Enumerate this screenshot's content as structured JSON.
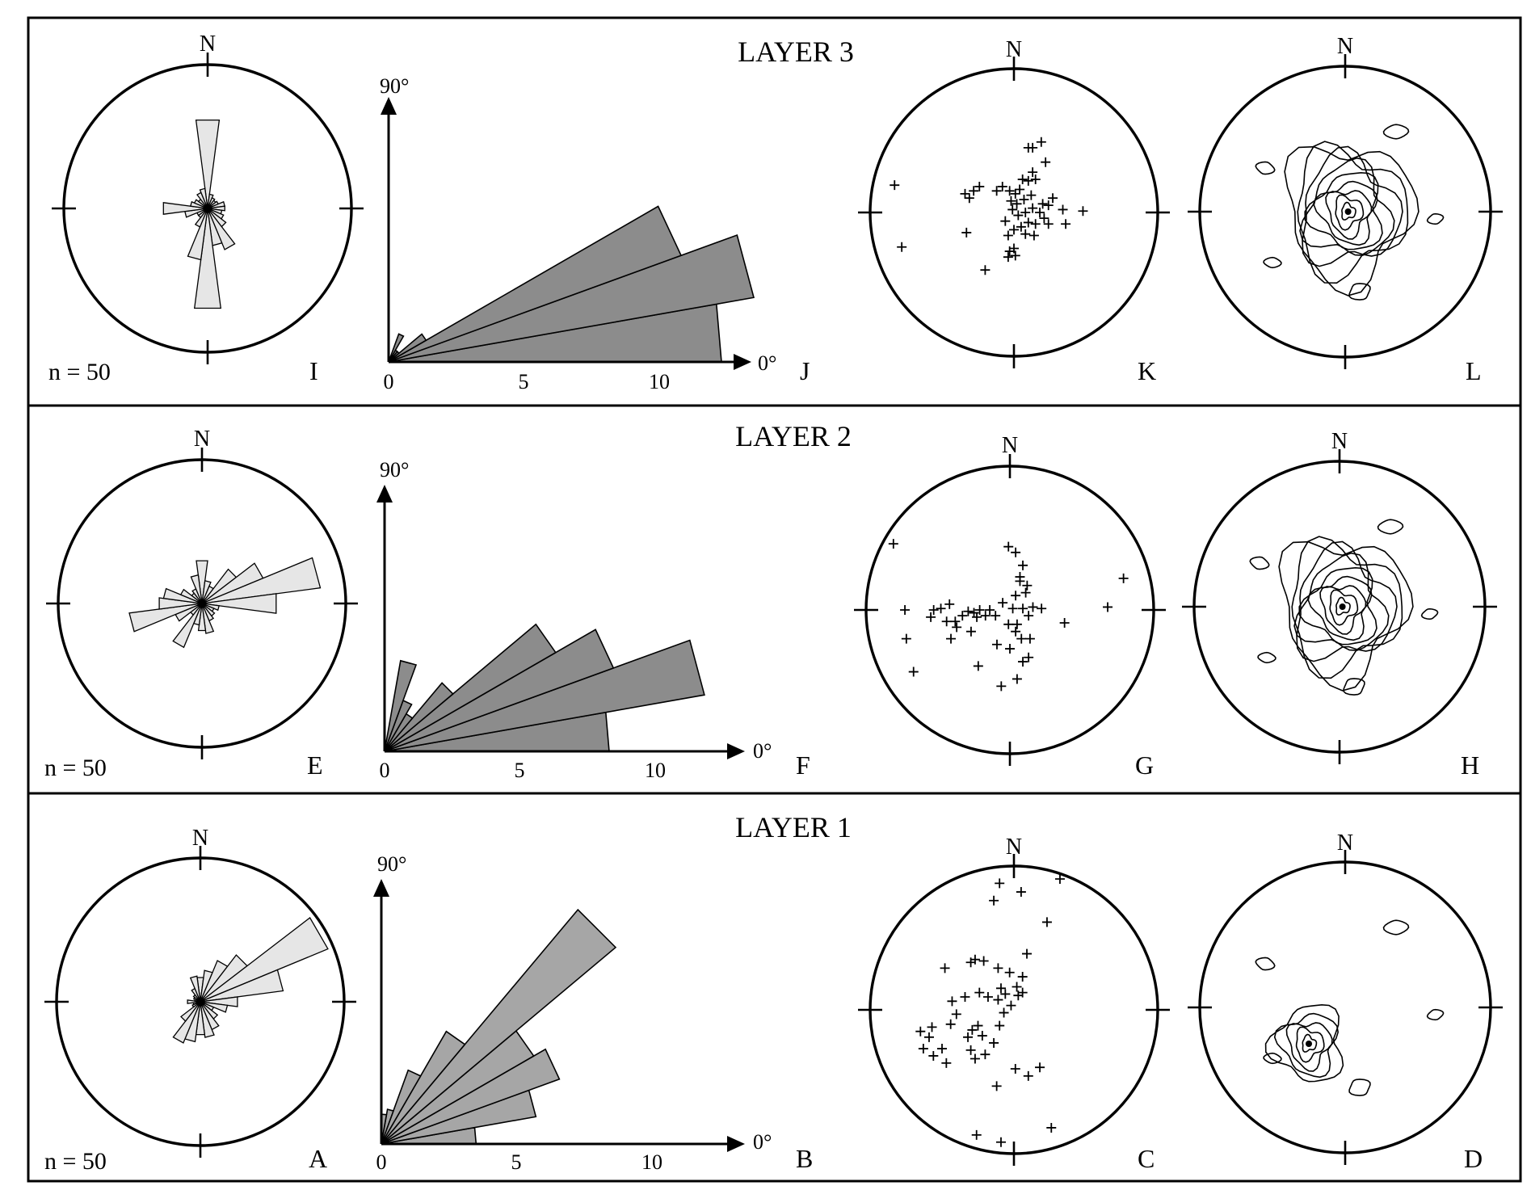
{
  "colors": {
    "rose_fill": "#e6e6e6",
    "layer3_bar_fill": "#8c8c8c",
    "layer2_bar_fill": "#8c8c8c",
    "layer1_bar_fill": "#a6a6a6",
    "line": "#000000"
  },
  "chart_data": [
    {
      "layer_title": "LAYER 3",
      "rose": {
        "type": "rose",
        "letter": "I",
        "north_label": "N",
        "count_text": "n = 50",
        "directions_deg": [
          0,
          15,
          30,
          45,
          60,
          75,
          90,
          105,
          120,
          135,
          150,
          165,
          180,
          195,
          210,
          225,
          240,
          255,
          270,
          285,
          300,
          315,
          330,
          345
        ],
        "values": [
          0.62,
          0.1,
          0.08,
          0.07,
          0.08,
          0.12,
          0.12,
          0.1,
          0.12,
          0.16,
          0.31,
          0.26,
          0.7,
          0.36,
          0.14,
          0.08,
          0.08,
          0.16,
          0.31,
          0.12,
          0.1,
          0.08,
          0.12,
          0.14
        ],
        "max": 1
      },
      "dip": {
        "type": "bar",
        "letter": "J",
        "top_label": "90°",
        "right_label": "0°",
        "x_ticks": [
          "0",
          "5",
          "10"
        ],
        "bin_width_deg": 10,
        "values": [
          12.3,
          13.7,
          11.5,
          1.6,
          0.5,
          0.5,
          1.1,
          0.1,
          0.1
        ],
        "xlim": [
          0,
          13
        ]
      },
      "points": {
        "type": "scatter",
        "letter": "K",
        "north_label": "N",
        "points": [
          [
            0.1,
            0.45
          ],
          [
            0.13,
            0.45
          ],
          [
            0.19,
            0.49
          ],
          [
            0.22,
            0.35
          ],
          [
            0.13,
            0.28
          ],
          [
            0.06,
            0.23
          ],
          [
            0.1,
            0.22
          ],
          [
            0.15,
            0.23
          ],
          [
            -0.28,
            0.15
          ],
          [
            -0.24,
            0.18
          ],
          [
            -0.31,
            0.1
          ],
          [
            -0.34,
            0.13
          ],
          [
            -0.12,
            0.15
          ],
          [
            -0.08,
            0.18
          ],
          [
            -0.03,
            0.15
          ],
          [
            0.01,
            0.13
          ],
          [
            0.04,
            0.16
          ],
          [
            -0.02,
            0.08
          ],
          [
            0.02,
            0.06
          ],
          [
            0.07,
            0.09
          ],
          [
            0.12,
            0.12
          ],
          [
            -0.01,
            0.02
          ],
          [
            0.03,
            -0.02
          ],
          [
            0.08,
            0.0
          ],
          [
            0.13,
            0.03
          ],
          [
            0.18,
            0.0
          ],
          [
            0.2,
            0.06
          ],
          [
            0.24,
            0.05
          ],
          [
            0.27,
            0.1
          ],
          [
            0.21,
            -0.04
          ],
          [
            0.24,
            -0.08
          ],
          [
            0.34,
            0.02
          ],
          [
            0.36,
            -0.08
          ],
          [
            0.48,
            0.01
          ],
          [
            -0.83,
            0.19
          ],
          [
            -0.78,
            -0.24
          ],
          [
            -0.33,
            -0.14
          ],
          [
            -0.06,
            -0.06
          ],
          [
            -0.04,
            -0.16
          ],
          [
            0.0,
            -0.12
          ],
          [
            0.05,
            -0.1
          ],
          [
            0.08,
            -0.15
          ],
          [
            0.1,
            -0.07
          ],
          [
            0.14,
            -0.16
          ],
          [
            0.15,
            -0.08
          ],
          [
            -0.03,
            -0.27
          ],
          [
            0.01,
            -0.3
          ],
          [
            -0.04,
            -0.31
          ],
          [
            0.0,
            -0.25
          ],
          [
            -0.2,
            -0.4
          ]
        ]
      },
      "density": {
        "type": "contour",
        "letter": "L",
        "north_label": "N",
        "max_center": [
          0.02,
          0.0
        ]
      }
    },
    {
      "layer_title": "LAYER 2",
      "rose": {
        "type": "rose",
        "letter": "E",
        "north_label": "N",
        "count_text": "n = 50",
        "directions_deg": [
          0,
          15,
          30,
          45,
          60,
          75,
          90,
          105,
          120,
          135,
          150,
          165,
          180,
          195,
          210,
          225,
          240,
          255,
          270,
          285,
          300,
          315,
          330,
          345
        ],
        "values": [
          0.3,
          0.16,
          0.13,
          0.3,
          0.46,
          0.83,
          0.52,
          0.12,
          0.09,
          0.11,
          0.13,
          0.21,
          0.19,
          0.15,
          0.33,
          0.1,
          0.2,
          0.51,
          0.3,
          0.27,
          0.16,
          0.09,
          0.11,
          0.2
        ],
        "max": 1
      },
      "dip": {
        "type": "bar",
        "letter": "F",
        "top_label": "90°",
        "right_label": "0°",
        "x_ticks": [
          "0",
          "5",
          "10"
        ],
        "bin_width_deg": 10,
        "values": [
          8.3,
          12.0,
          9.0,
          7.3,
          3.3,
          1.6,
          2.0,
          3.4,
          0.2
        ],
        "xlim": [
          0,
          13
        ]
      },
      "points": {
        "type": "scatter",
        "letter": "G",
        "north_label": "N",
        "points": [
          [
            -0.01,
            0.44
          ],
          [
            0.04,
            0.4
          ],
          [
            0.09,
            0.31
          ],
          [
            0.12,
            0.17
          ],
          [
            0.07,
            0.2
          ],
          [
            0.04,
            0.1
          ],
          [
            -0.05,
            0.05
          ],
          [
            0.02,
            0.01
          ],
          [
            0.09,
            0.01
          ],
          [
            0.16,
            0.02
          ],
          [
            0.13,
            -0.04
          ],
          [
            0.22,
            0.01
          ],
          [
            0.11,
            0.12
          ],
          [
            -0.1,
            -0.04
          ],
          [
            -0.14,
            0.0
          ],
          [
            -0.17,
            -0.04
          ],
          [
            -0.21,
            0.0
          ],
          [
            -0.25,
            -0.02
          ],
          [
            -0.29,
            -0.01
          ],
          [
            -0.33,
            -0.04
          ],
          [
            -0.38,
            -0.08
          ],
          [
            -0.42,
            0.04
          ],
          [
            -0.48,
            0.01
          ],
          [
            -0.53,
            0.0
          ],
          [
            -0.55,
            -0.05
          ],
          [
            -0.73,
            0.0
          ],
          [
            -0.72,
            -0.2
          ],
          [
            -0.81,
            0.46
          ],
          [
            -0.67,
            -0.43
          ],
          [
            -0.41,
            -0.2
          ],
          [
            -0.37,
            -0.12
          ],
          [
            -0.27,
            -0.15
          ],
          [
            0.04,
            -0.15
          ],
          [
            0.08,
            -0.2
          ],
          [
            -0.01,
            -0.1
          ],
          [
            0.05,
            -0.1
          ],
          [
            0.14,
            -0.2
          ],
          [
            0.09,
            -0.36
          ],
          [
            0.13,
            -0.33
          ],
          [
            0.05,
            -0.48
          ],
          [
            -0.06,
            -0.53
          ],
          [
            -0.22,
            -0.39
          ],
          [
            0.0,
            -0.27
          ],
          [
            0.07,
            0.23
          ],
          [
            0.38,
            -0.09
          ],
          [
            0.68,
            0.02
          ],
          [
            0.79,
            0.22
          ],
          [
            -0.09,
            -0.24
          ],
          [
            -0.23,
            -0.05
          ],
          [
            -0.44,
            -0.08
          ]
        ]
      },
      "density": {
        "type": "contour",
        "letter": "H",
        "north_label": "N",
        "max_center": [
          0.02,
          0.0
        ]
      }
    },
    {
      "layer_title": "LAYER 1",
      "rose": {
        "type": "rose",
        "letter": "A",
        "north_label": "N",
        "count_text": "n = 50",
        "directions_deg": [
          0,
          15,
          30,
          45,
          60,
          75,
          90,
          105,
          120,
          135,
          150,
          165,
          180,
          195,
          210,
          225,
          240,
          255,
          270,
          285,
          300,
          315,
          330,
          345
        ],
        "values": [
          0.17,
          0.22,
          0.31,
          0.41,
          0.96,
          0.58,
          0.26,
          0.19,
          0.1,
          0.15,
          0.21,
          0.25,
          0.23,
          0.28,
          0.31,
          0.17,
          0.06,
          0.05,
          0.09,
          0.04,
          0.05,
          0.06,
          0.1,
          0.18
        ],
        "max": 1
      },
      "dip": {
        "type": "bar",
        "letter": "B",
        "top_label": "90°",
        "right_label": "0°",
        "x_ticks": [
          "0",
          "5",
          "10"
        ],
        "bin_width_deg": 10,
        "values": [
          3.5,
          5.8,
          7.0,
          6.5,
          11.3,
          4.8,
          2.9,
          1.3,
          1.1
        ],
        "xlim": [
          0,
          13
        ]
      },
      "points": {
        "type": "scatter",
        "letter": "C",
        "north_label": "N",
        "points": [
          [
            -0.1,
            0.88
          ],
          [
            0.05,
            0.82
          ],
          [
            -0.14,
            0.76
          ],
          [
            0.23,
            0.61
          ],
          [
            0.09,
            0.39
          ],
          [
            -0.3,
            0.33
          ],
          [
            -0.48,
            0.29
          ],
          [
            -0.27,
            0.35
          ],
          [
            -0.21,
            0.34
          ],
          [
            -0.11,
            0.29
          ],
          [
            -0.03,
            0.26
          ],
          [
            0.06,
            0.23
          ],
          [
            0.06,
            0.12
          ],
          [
            0.03,
            0.1
          ],
          [
            0.02,
            0.16
          ],
          [
            -0.06,
            0.11
          ],
          [
            -0.09,
            0.15
          ],
          [
            -0.11,
            0.07
          ],
          [
            -0.18,
            0.09
          ],
          [
            -0.24,
            0.12
          ],
          [
            -0.34,
            0.09
          ],
          [
            -0.43,
            0.06
          ],
          [
            -0.4,
            -0.03
          ],
          [
            -0.44,
            -0.1
          ],
          [
            -0.57,
            -0.12
          ],
          [
            -0.59,
            -0.19
          ],
          [
            -0.65,
            -0.15
          ],
          [
            -0.63,
            -0.27
          ],
          [
            -0.56,
            -0.32
          ],
          [
            -0.5,
            -0.27
          ],
          [
            -0.47,
            -0.37
          ],
          [
            -0.32,
            -0.19
          ],
          [
            -0.29,
            -0.14
          ],
          [
            -0.22,
            -0.18
          ],
          [
            -0.25,
            -0.11
          ],
          [
            -0.3,
            -0.28
          ],
          [
            -0.27,
            -0.34
          ],
          [
            -0.2,
            -0.31
          ],
          [
            -0.14,
            -0.23
          ],
          [
            -0.1,
            -0.11
          ],
          [
            -0.07,
            -0.02
          ],
          [
            -0.02,
            0.03
          ],
          [
            0.01,
            -0.41
          ],
          [
            0.1,
            -0.46
          ],
          [
            -0.12,
            -0.53
          ],
          [
            0.18,
            -0.4
          ],
          [
            -0.26,
            -0.87
          ],
          [
            -0.09,
            -0.92
          ],
          [
            0.26,
            -0.82
          ],
          [
            0.32,
            0.91
          ]
        ]
      },
      "density": {
        "type": "contour",
        "letter": "D",
        "north_label": "N",
        "max_center": [
          -0.25,
          -0.25
        ]
      }
    }
  ]
}
